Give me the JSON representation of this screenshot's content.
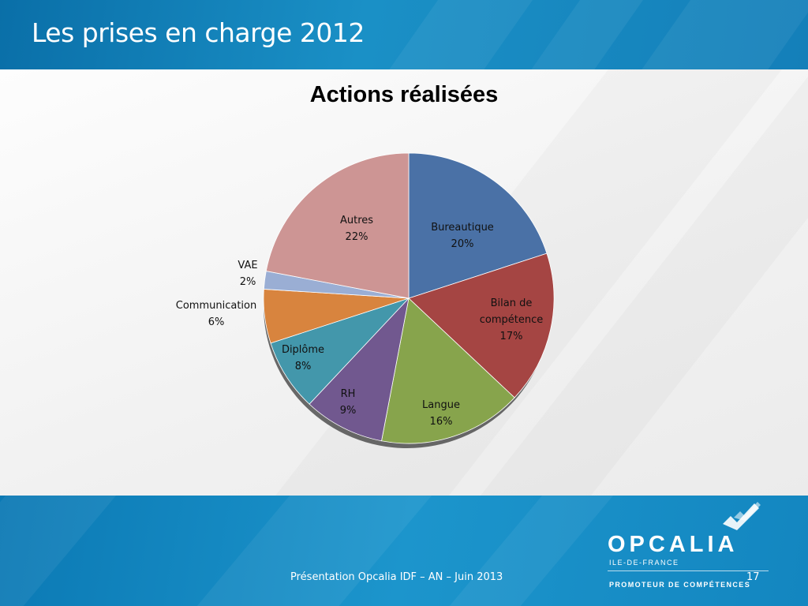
{
  "slide": {
    "title": "Les prises en charge 2012",
    "footer_text": "Présentation Opcalia IDF – AN – Juin 2013",
    "page_number": "17"
  },
  "logo": {
    "name": "OPCALIA",
    "region": "ILE-DE-FRANCE",
    "tagline": "PROMOTEUR DE COMPÉTENCES"
  },
  "colors": {
    "header": "#1a8fc6",
    "footer": "#1a90c8"
  },
  "chart_data": {
    "type": "pie",
    "title": "Actions réalisées",
    "start": "12 o'clock, clockwise",
    "slices": [
      {
        "label": "Bureautique",
        "value": 20,
        "pct_label": "20%",
        "color": "#4a71a6"
      },
      {
        "label": "Bilan de compétence",
        "value": 17,
        "pct_label": "17%",
        "color": "#a54543"
      },
      {
        "label": "Langue",
        "value": 16,
        "pct_label": "16%",
        "color": "#87a44c"
      },
      {
        "label": "RH",
        "value": 9,
        "pct_label": "9%",
        "color": "#71588f"
      },
      {
        "label": "Diplôme",
        "value": 8,
        "pct_label": "8%",
        "color": "#4397ab"
      },
      {
        "label": "Communication",
        "value": 6,
        "pct_label": "6%",
        "color": "#d8843e"
      },
      {
        "label": "VAE",
        "value": 2,
        "pct_label": "2%",
        "color": "#9aaed4"
      },
      {
        "label": "Autres",
        "value": 22,
        "pct_label": "22%",
        "color": "#cd9594"
      }
    ]
  }
}
